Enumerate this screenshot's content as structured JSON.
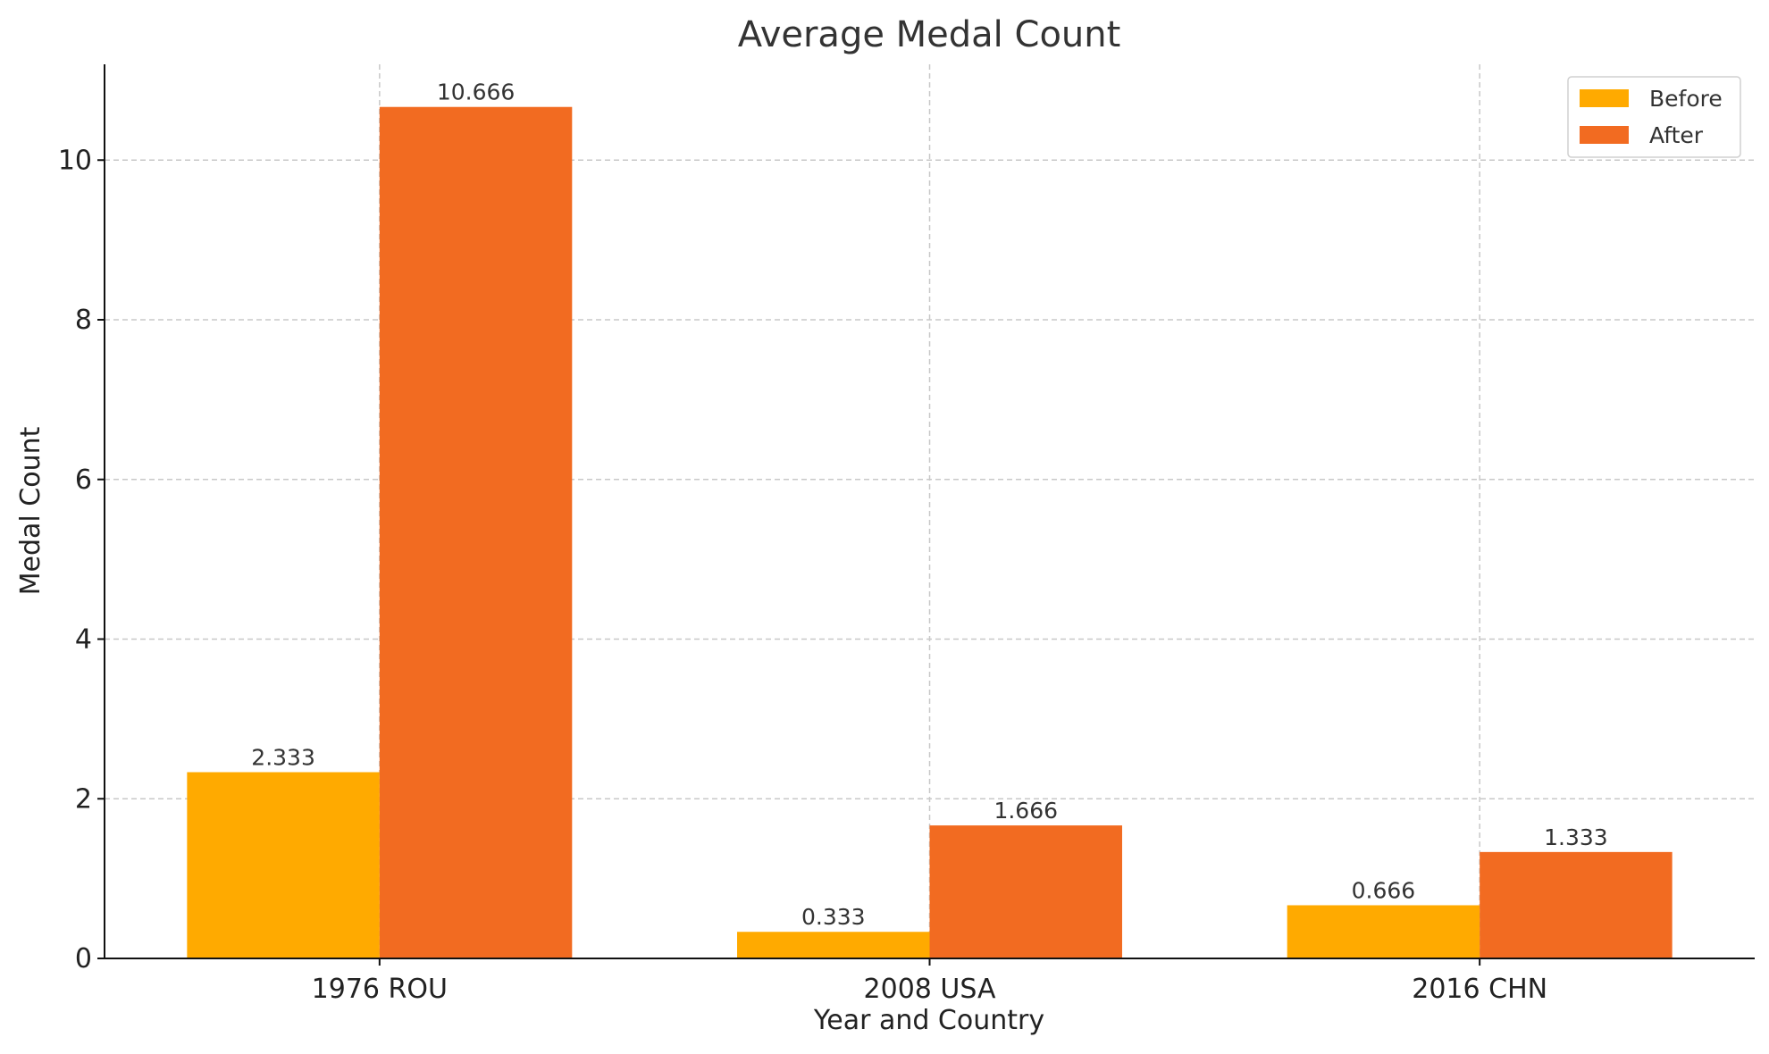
{
  "chart_data": {
    "type": "bar",
    "title": "Average Medal Count",
    "xlabel": "Year and Country",
    "ylabel": "Medal Count",
    "categories": [
      "1976 ROU",
      "2008 USA",
      "2016 CHN"
    ],
    "series": [
      {
        "name": "Before",
        "values": [
          2.333,
          0.333,
          0.666
        ],
        "labels": [
          "2.333",
          "0.333",
          "0.666"
        ],
        "color": "#FFAA00"
      },
      {
        "name": "After",
        "values": [
          10.666,
          1.666,
          1.333
        ],
        "labels": [
          "10.666",
          "1.666",
          "1.333"
        ],
        "color": "#F26B21"
      }
    ],
    "ylim": [
      0,
      11.2
    ],
    "yticks": [
      0,
      2,
      4,
      6,
      8,
      10
    ],
    "ytick_labels": [
      "0",
      "2",
      "4",
      "6",
      "8",
      "10"
    ],
    "grid": true,
    "legend_position": "top-right"
  }
}
